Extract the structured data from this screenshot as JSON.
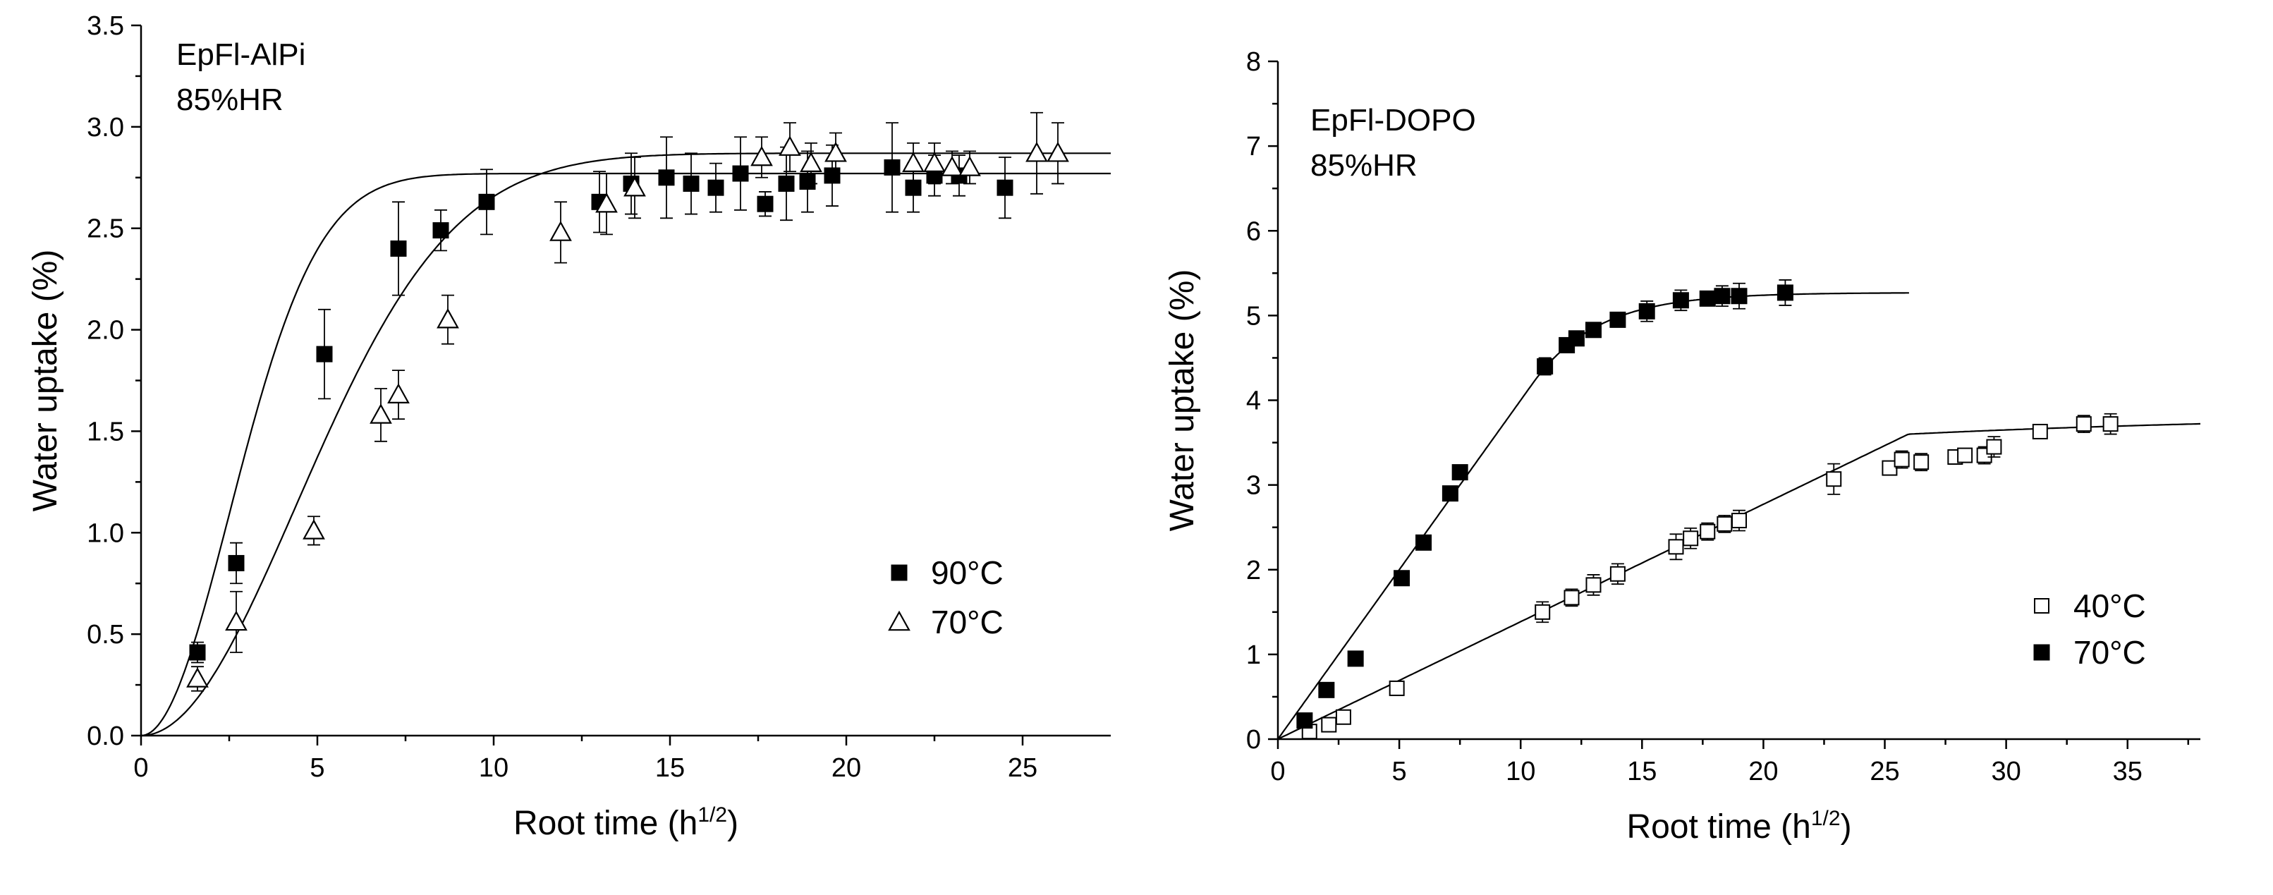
{
  "chart_data": [
    {
      "type": "scatter",
      "panel_label": [
        "EpFl-AlPi",
        "85%HR"
      ],
      "xlabel": "Root time (h",
      "xlabel_sup": "1/2",
      "xlabel_close": ")",
      "ylabel": "Water uptake (%)",
      "xlim": [
        0,
        27.5
      ],
      "ylim": [
        0,
        3.5
      ],
      "xticks": [
        0,
        5,
        10,
        15,
        20,
        25
      ],
      "yticks": [
        0.0,
        0.5,
        1.0,
        1.5,
        2.0,
        2.5,
        3.0,
        3.5
      ],
      "ytick_labels": [
        "0.0",
        "0.5",
        "1.0",
        "1.5",
        "2.0",
        "2.5",
        "3.0",
        "3.5"
      ],
      "legend_position": "lower-right",
      "series": [
        {
          "name": "90°C",
          "marker": "filled-square",
          "points": [
            {
              "x": 1.6,
              "y": 0.41,
              "err": 0.05
            },
            {
              "x": 2.7,
              "y": 0.85,
              "err": 0.1
            },
            {
              "x": 5.2,
              "y": 1.88,
              "err": 0.22
            },
            {
              "x": 7.3,
              "y": 2.4,
              "err": 0.23
            },
            {
              "x": 8.5,
              "y": 2.49,
              "err": 0.1
            },
            {
              "x": 9.8,
              "y": 2.63,
              "err": 0.16
            },
            {
              "x": 13.0,
              "y": 2.63,
              "err": 0.15
            },
            {
              "x": 13.9,
              "y": 2.72,
              "err": 0.15
            },
            {
              "x": 14.9,
              "y": 2.75,
              "err": 0.2
            },
            {
              "x": 15.6,
              "y": 2.72,
              "err": 0.15
            },
            {
              "x": 16.3,
              "y": 2.7,
              "err": 0.12
            },
            {
              "x": 17.0,
              "y": 2.77,
              "err": 0.18
            },
            {
              "x": 17.7,
              "y": 2.62,
              "err": 0.06
            },
            {
              "x": 18.3,
              "y": 2.72,
              "err": 0.18
            },
            {
              "x": 18.9,
              "y": 2.73,
              "err": 0.15
            },
            {
              "x": 19.6,
              "y": 2.76,
              "err": 0.15
            },
            {
              "x": 21.3,
              "y": 2.8,
              "err": 0.22
            },
            {
              "x": 21.9,
              "y": 2.7,
              "err": 0.12
            },
            {
              "x": 22.5,
              "y": 2.76,
              "err": 0.1
            },
            {
              "x": 23.2,
              "y": 2.76,
              "err": 0.1
            },
            {
              "x": 24.5,
              "y": 2.7,
              "err": 0.15
            }
          ],
          "fit": {
            "a": 2.77,
            "k": 0.08
          }
        },
        {
          "name": "70°C",
          "marker": "open-triangle",
          "points": [
            {
              "x": 1.6,
              "y": 0.28,
              "err": 0.06
            },
            {
              "x": 2.7,
              "y": 0.56,
              "err": 0.15
            },
            {
              "x": 4.9,
              "y": 1.01,
              "err": 0.07
            },
            {
              "x": 6.8,
              "y": 1.58,
              "err": 0.13
            },
            {
              "x": 7.3,
              "y": 1.68,
              "err": 0.12
            },
            {
              "x": 8.7,
              "y": 2.05,
              "err": 0.12
            },
            {
              "x": 11.9,
              "y": 2.48,
              "err": 0.15
            },
            {
              "x": 13.2,
              "y": 2.62,
              "err": 0.15
            },
            {
              "x": 14.0,
              "y": 2.7,
              "err": 0.15
            },
            {
              "x": 17.6,
              "y": 2.85,
              "err": 0.1
            },
            {
              "x": 18.4,
              "y": 2.9,
              "err": 0.12
            },
            {
              "x": 19.0,
              "y": 2.82,
              "err": 0.1
            },
            {
              "x": 19.7,
              "y": 2.87,
              "err": 0.1
            },
            {
              "x": 21.9,
              "y": 2.82,
              "err": 0.1
            },
            {
              "x": 22.5,
              "y": 2.82,
              "err": 0.1
            },
            {
              "x": 23.0,
              "y": 2.8,
              "err": 0.08
            },
            {
              "x": 23.5,
              "y": 2.8,
              "err": 0.08
            },
            {
              "x": 25.4,
              "y": 2.87,
              "err": 0.2
            },
            {
              "x": 26.0,
              "y": 2.87,
              "err": 0.15
            }
          ],
          "fit": {
            "a": 2.87,
            "k": 0.026
          }
        }
      ]
    },
    {
      "type": "scatter",
      "panel_label": [
        "EpFl-DOPO",
        "85%HR"
      ],
      "xlabel": "Root time (h",
      "xlabel_sup": "1/2",
      "xlabel_close": ")",
      "ylabel": "Water uptake (%)",
      "xlim": [
        0,
        38
      ],
      "ylim": [
        0,
        8
      ],
      "xticks": [
        0,
        5,
        10,
        15,
        20,
        25,
        30,
        35
      ],
      "yticks": [
        0,
        1,
        2,
        3,
        4,
        5,
        6,
        7,
        8
      ],
      "ytick_labels": [
        "0",
        "1",
        "2",
        "3",
        "4",
        "5",
        "6",
        "7",
        "8"
      ],
      "legend_position": "lower-right",
      "series": [
        {
          "name": "40°C",
          "marker": "open-square",
          "points": [
            {
              "x": 1.3,
              "y": 0.09,
              "err": 0.05
            },
            {
              "x": 2.1,
              "y": 0.17,
              "err": 0.05
            },
            {
              "x": 2.7,
              "y": 0.26,
              "err": 0.05
            },
            {
              "x": 4.9,
              "y": 0.6,
              "err": 0.06
            },
            {
              "x": 10.9,
              "y": 1.5,
              "err": 0.12
            },
            {
              "x": 12.1,
              "y": 1.67,
              "err": 0.1
            },
            {
              "x": 13.0,
              "y": 1.82,
              "err": 0.12
            },
            {
              "x": 14.0,
              "y": 1.95,
              "err": 0.12
            },
            {
              "x": 16.4,
              "y": 2.27,
              "err": 0.15
            },
            {
              "x": 17.0,
              "y": 2.37,
              "err": 0.12
            },
            {
              "x": 17.7,
              "y": 2.45,
              "err": 0.1
            },
            {
              "x": 18.4,
              "y": 2.54,
              "err": 0.1
            },
            {
              "x": 19.0,
              "y": 2.58,
              "err": 0.12
            },
            {
              "x": 22.9,
              "y": 3.07,
              "err": 0.18
            },
            {
              "x": 25.2,
              "y": 3.2,
              "err": 0.06
            },
            {
              "x": 25.7,
              "y": 3.3,
              "err": 0.1
            },
            {
              "x": 26.5,
              "y": 3.27,
              "err": 0.1
            },
            {
              "x": 27.9,
              "y": 3.33,
              "err": 0.05
            },
            {
              "x": 28.3,
              "y": 3.35,
              "err": 0.05
            },
            {
              "x": 29.1,
              "y": 3.35,
              "err": 0.1
            },
            {
              "x": 29.5,
              "y": 3.45,
              "err": 0.12
            },
            {
              "x": 31.4,
              "y": 3.63,
              "err": 0.06
            },
            {
              "x": 33.2,
              "y": 3.72,
              "err": 0.1
            },
            {
              "x": 34.3,
              "y": 3.72,
              "err": 0.12
            }
          ],
          "fit": {
            "s1": 0.1386,
            "x1": 26.0,
            "y1": 3.6,
            "a": 3.85,
            "k": 0.0556,
            "xmax": 38
          }
        },
        {
          "name": "70°C",
          "marker": "filled-square",
          "points": [
            {
              "x": 1.1,
              "y": 0.22,
              "err": 0.05
            },
            {
              "x": 2.0,
              "y": 0.58,
              "err": 0.05
            },
            {
              "x": 3.2,
              "y": 0.95,
              "err": 0.05
            },
            {
              "x": 5.1,
              "y": 1.9,
              "err": 0.05
            },
            {
              "x": 6.0,
              "y": 2.32,
              "err": 0.06
            },
            {
              "x": 7.1,
              "y": 2.9,
              "err": 0.08
            },
            {
              "x": 7.5,
              "y": 3.15,
              "err": 0.06
            },
            {
              "x": 11.0,
              "y": 4.4,
              "err": 0.1
            },
            {
              "x": 11.9,
              "y": 4.65,
              "err": 0.06
            },
            {
              "x": 12.3,
              "y": 4.73,
              "err": 0.05
            },
            {
              "x": 13.0,
              "y": 4.83,
              "err": 0.06
            },
            {
              "x": 14.0,
              "y": 4.95,
              "err": 0.05
            },
            {
              "x": 15.2,
              "y": 5.05,
              "err": 0.12
            },
            {
              "x": 16.6,
              "y": 5.18,
              "err": 0.12
            },
            {
              "x": 17.7,
              "y": 5.2,
              "err": 0.08
            },
            {
              "x": 18.3,
              "y": 5.23,
              "err": 0.12
            },
            {
              "x": 19.0,
              "y": 5.23,
              "err": 0.15
            },
            {
              "x": 20.9,
              "y": 5.27,
              "err": 0.15
            }
          ],
          "fit": {
            "s1": 0.4,
            "x1": 10.5,
            "y1": 4.2,
            "a": 5.27,
            "k": 0.375,
            "xmax": 26
          }
        }
      ]
    }
  ]
}
